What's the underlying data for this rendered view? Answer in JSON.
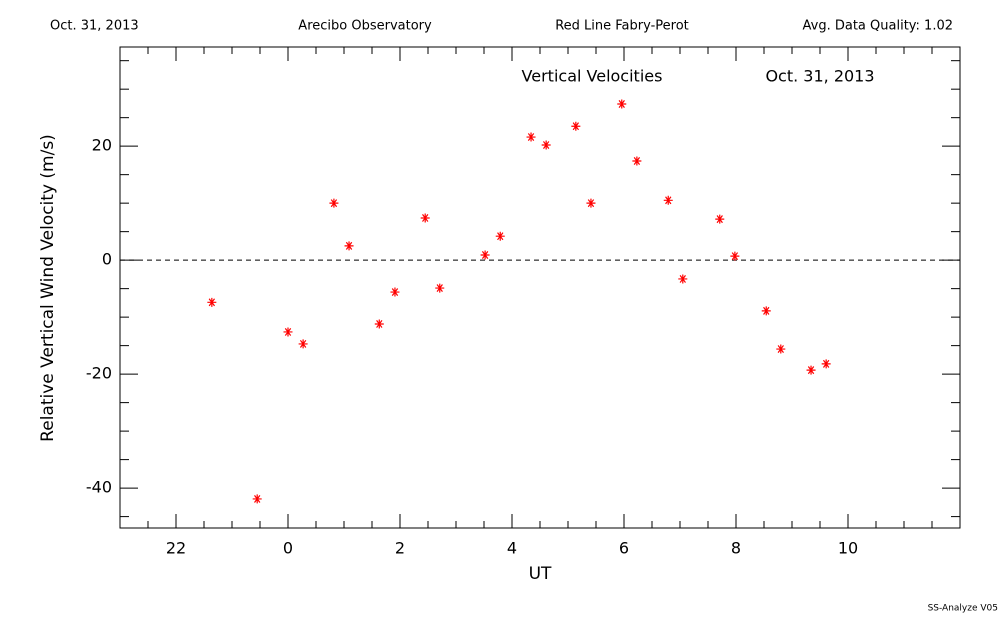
{
  "header": {
    "date": "Oct. 31, 2013",
    "site": "Arecibo Observatory",
    "instrument": "Red Line Fabry-Perot",
    "quality": "Avg. Data Quality: 1.02"
  },
  "footer": "SS-Analyze V05",
  "chart_data": {
    "type": "scatter",
    "title": "Vertical Velocities",
    "subtitle": "Oct. 31, 2013",
    "x_label": "UT",
    "y_label": "Relative Vertical Wind Velocity (m/s)",
    "xlim": [
      -3,
      12
    ],
    "ylim": [
      -47,
      37.4
    ],
    "xticks": [
      {
        "value": -2,
        "label": "22"
      },
      0,
      2,
      4,
      6,
      8,
      10
    ],
    "yticks": [
      -40,
      -20,
      0,
      20
    ],
    "xminorticks": [
      -2.5,
      -1.5,
      -1,
      -0.5,
      0.5,
      1,
      1.5,
      2.5,
      3,
      3.5,
      4.5,
      5,
      5.5,
      6.5,
      7,
      7.5,
      8.5,
      9,
      9.5,
      10.5,
      11,
      11.5
    ],
    "yminorticks": [
      -45,
      -35,
      -30,
      -25,
      -15,
      -10,
      -5,
      5,
      10,
      15,
      25,
      30,
      35
    ],
    "reference_line": 0,
    "series": [
      {
        "name": "Vertical Velocities",
        "color": "#ff0000",
        "x": [
          -1.36,
          -0.55,
          0,
          0.27,
          0.82,
          1.09,
          1.63,
          1.91,
          2.45,
          2.71,
          3.52,
          3.79,
          4.34,
          4.61,
          5.14,
          5.41,
          5.96,
          6.23,
          6.79,
          7.05,
          7.71,
          7.98,
          8.54,
          8.8,
          9.34,
          9.61
        ],
        "values": [
          -7.4,
          -41.9,
          -12.6,
          -14.7,
          10.0,
          2.5,
          -11.2,
          -5.6,
          7.4,
          -4.9,
          0.9,
          4.2,
          21.6,
          20.2,
          23.5,
          10.0,
          27.4,
          17.4,
          10.5,
          -3.3,
          7.2,
          0.7,
          -8.9,
          -15.6,
          -19.3,
          -18.2
        ]
      }
    ]
  }
}
